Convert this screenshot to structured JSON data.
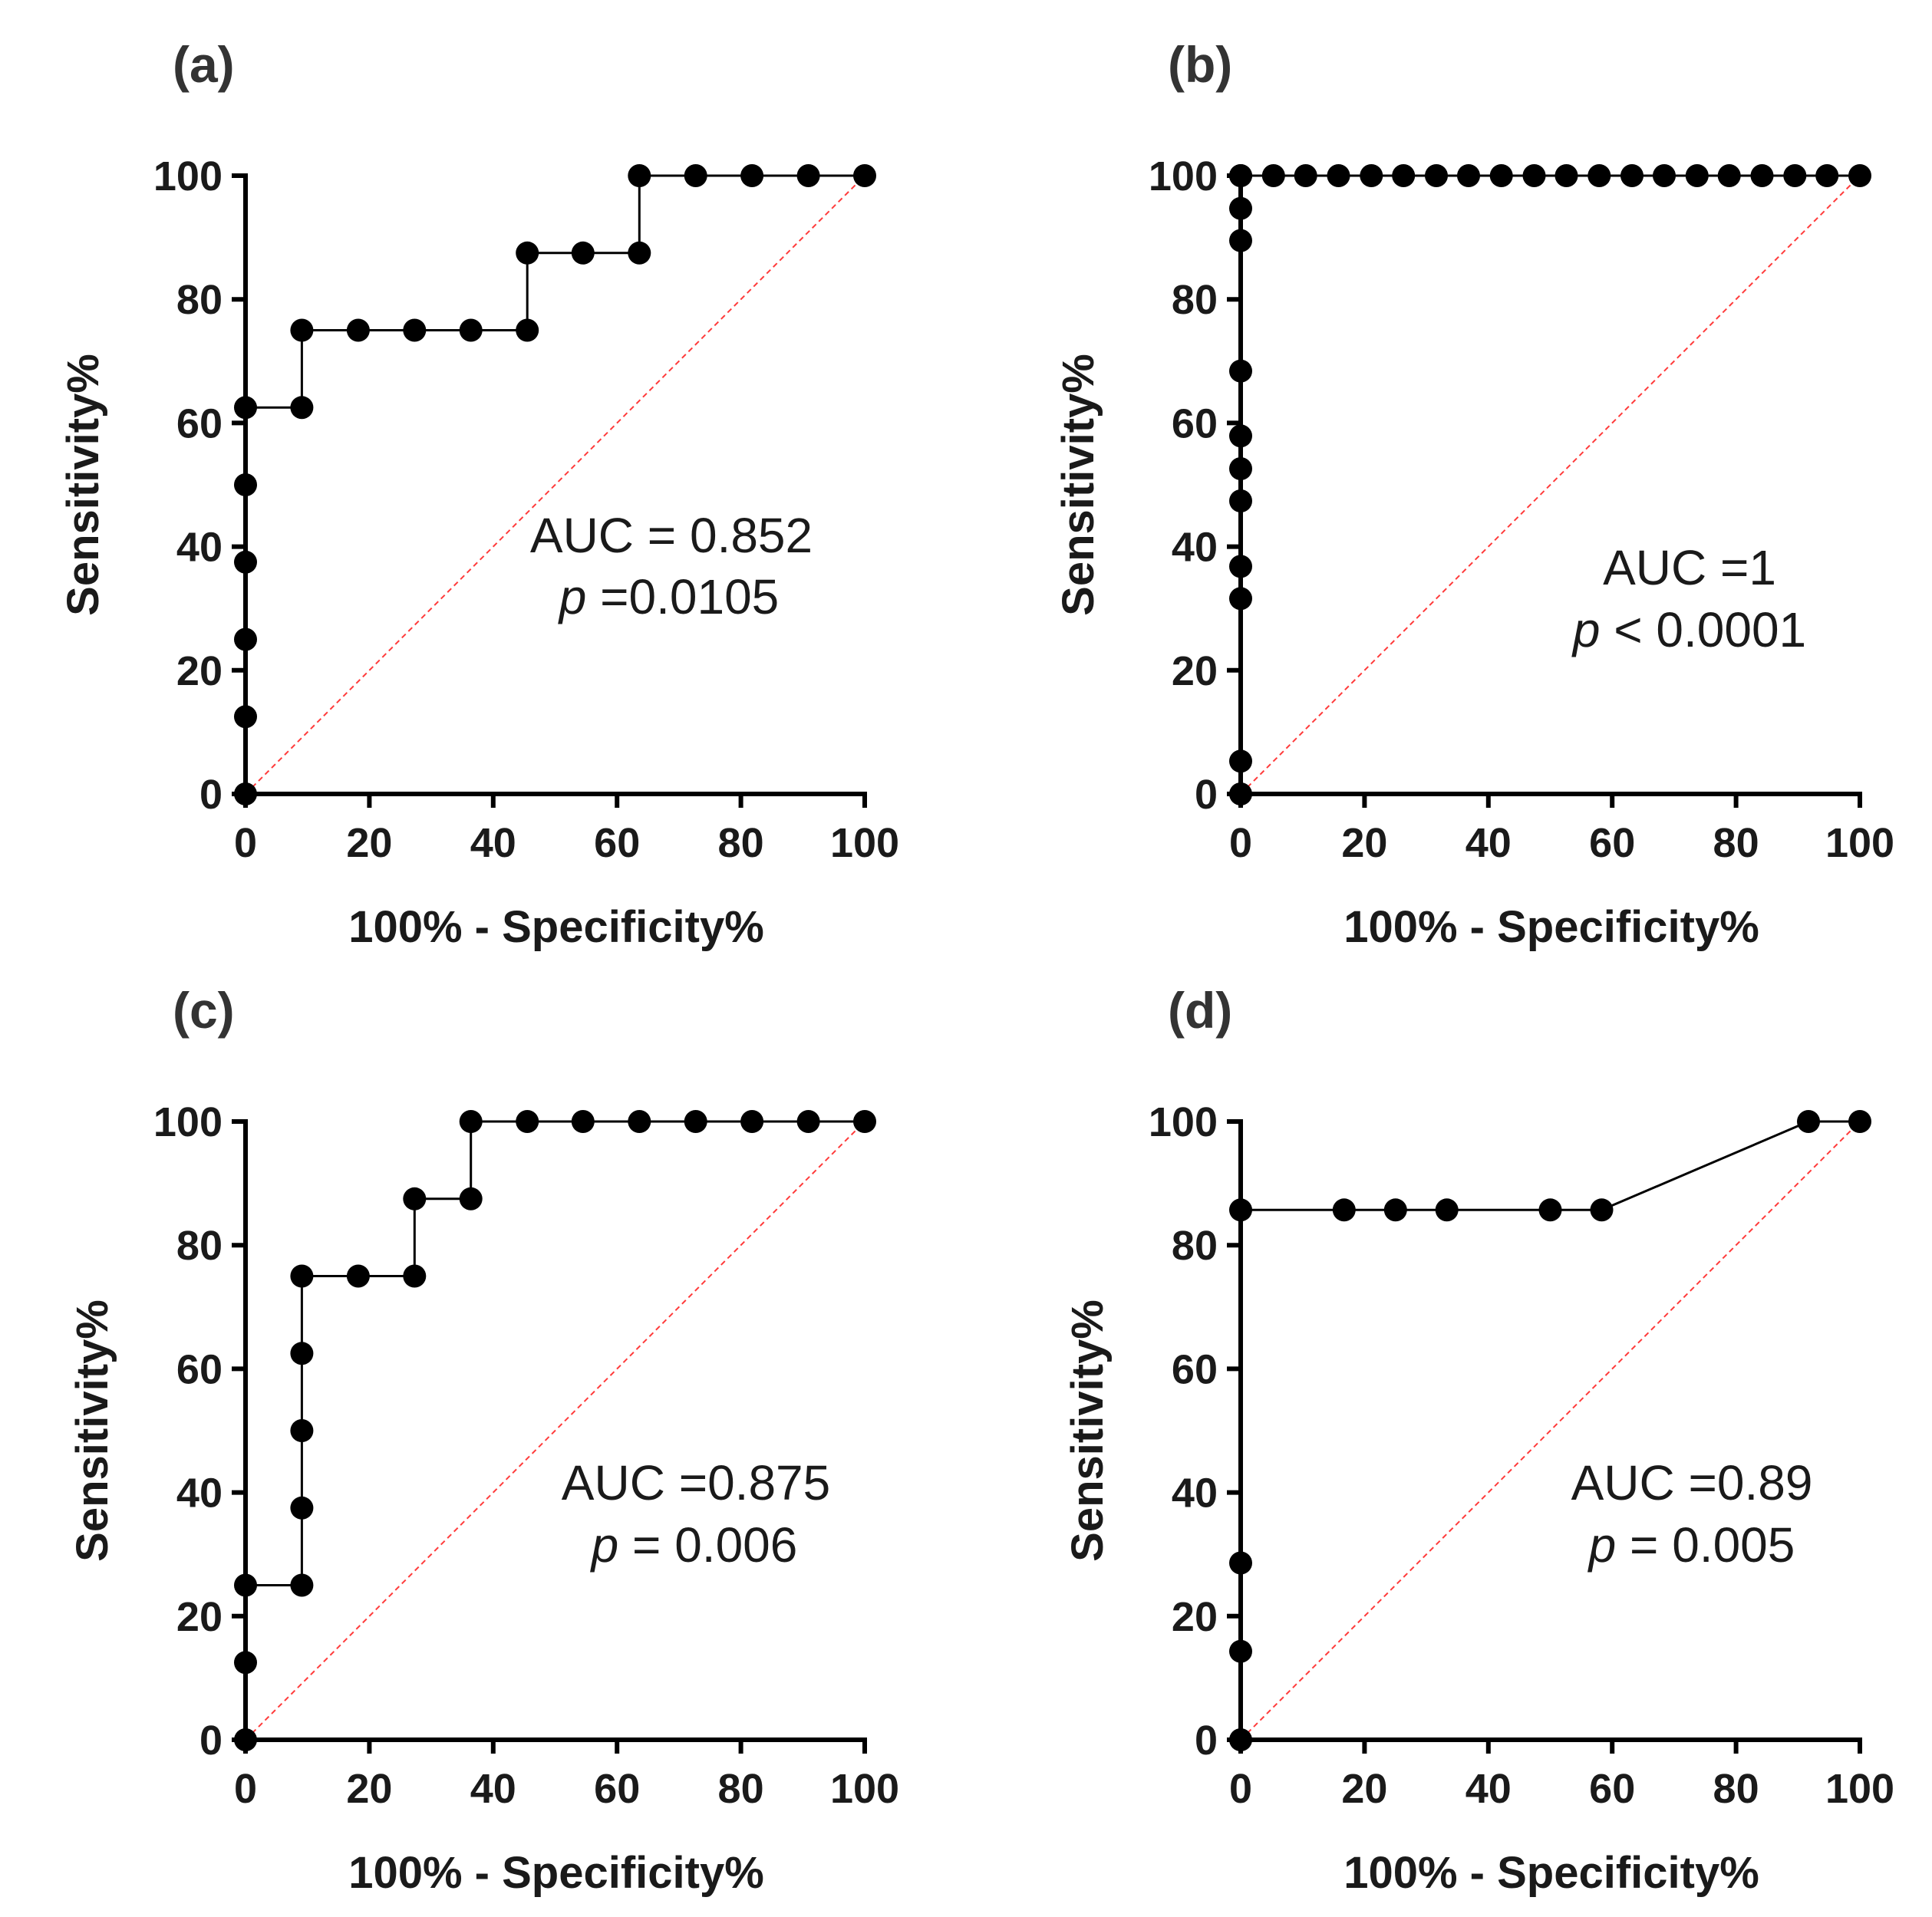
{
  "chart_data": [
    {
      "type": "line",
      "panel": "(a)",
      "xlabel": "100% - Specificity%",
      "ylabel": "Sensitivity%",
      "xlim": [
        0,
        100
      ],
      "ylim": [
        0,
        100
      ],
      "xticks": [
        "0",
        "20",
        "40",
        "60",
        "80",
        "100"
      ],
      "yticks": [
        "0",
        "20",
        "40",
        "60",
        "80",
        "100"
      ],
      "annotation": {
        "auc": "AUC = 0.852",
        "p_symbol": "p",
        "p_value": " =0.0105"
      },
      "reference_line": true,
      "x": [
        0,
        0,
        0,
        0,
        0,
        0,
        9.1,
        9.1,
        18.2,
        27.3,
        36.4,
        45.5,
        45.5,
        54.5,
        63.6,
        63.6,
        72.7,
        81.8,
        90.9,
        100
      ],
      "y": [
        0,
        12.5,
        25,
        37.5,
        50,
        62.5,
        62.5,
        75,
        75,
        75,
        75,
        75,
        87.5,
        87.5,
        87.5,
        100,
        100,
        100,
        100,
        100
      ],
      "step": true
    },
    {
      "type": "line",
      "panel": "(b)",
      "xlabel": "100% - Specificity%",
      "ylabel": "Sensitivity%",
      "xlim": [
        0,
        100
      ],
      "ylim": [
        0,
        100
      ],
      "xticks": [
        "0",
        "20",
        "40",
        "60",
        "80",
        "100"
      ],
      "yticks": [
        "0",
        "20",
        "40",
        "60",
        "80",
        "100"
      ],
      "annotation": {
        "auc": "AUC =1",
        "p_symbol": "p",
        "p_value": " < 0.0001"
      },
      "reference_line": true,
      "x": [
        0,
        0,
        0,
        0,
        0,
        0,
        0,
        0,
        0,
        0,
        0,
        0,
        5.3,
        10.5,
        15.8,
        21.1,
        26.3,
        31.6,
        36.8,
        42.1,
        47.4,
        52.6,
        57.9,
        63.2,
        68.4,
        73.7,
        78.9,
        84.2,
        89.5,
        94.7,
        100
      ],
      "y": [
        0,
        5.3,
        31.6,
        36.8,
        47.4,
        52.6,
        57.9,
        68.4,
        89.5,
        94.7,
        100,
        100,
        100,
        100,
        100,
        100,
        100,
        100,
        100,
        100,
        100,
        100,
        100,
        100,
        100,
        100,
        100,
        100,
        100,
        100,
        100
      ],
      "step": true
    },
    {
      "type": "line",
      "panel": "(c)",
      "xlabel": "100% - Specificity%",
      "ylabel": "Sensitivity%",
      "xlim": [
        0,
        100
      ],
      "ylim": [
        0,
        100
      ],
      "xticks": [
        "0",
        "20",
        "40",
        "60",
        "80",
        "100"
      ],
      "yticks": [
        "0",
        "20",
        "40",
        "60",
        "80",
        "100"
      ],
      "annotation": {
        "auc": "AUC =0.875",
        "p_symbol": "p",
        "p_value": " = 0.006"
      },
      "reference_line": true,
      "x": [
        0,
        0,
        0,
        9.1,
        9.1,
        9.1,
        9.1,
        9.1,
        18.2,
        27.3,
        27.3,
        36.4,
        36.4,
        45.5,
        54.5,
        63.6,
        72.7,
        81.8,
        90.9,
        100
      ],
      "y": [
        0,
        12.5,
        25,
        25,
        37.5,
        50,
        62.5,
        75,
        75,
        75,
        87.5,
        87.5,
        100,
        100,
        100,
        100,
        100,
        100,
        100,
        100
      ],
      "step": true
    },
    {
      "type": "line",
      "panel": "(d)",
      "xlabel": "100% - Specificity%",
      "ylabel": "Sensitivity%",
      "xlim": [
        0,
        100
      ],
      "ylim": [
        0,
        100
      ],
      "xticks": [
        "0",
        "20",
        "40",
        "60",
        "80",
        "100"
      ],
      "yticks": [
        "0",
        "20",
        "40",
        "60",
        "80",
        "100"
      ],
      "annotation": {
        "auc": "AUC =0.89",
        "p_symbol": "p",
        "p_value": " = 0.005"
      },
      "reference_line": true,
      "x": [
        0,
        0,
        0,
        0,
        16.7,
        25,
        33.3,
        50,
        58.3,
        91.7,
        100
      ],
      "y": [
        0,
        14.3,
        28.6,
        85.7,
        85.7,
        85.7,
        85.7,
        85.7,
        85.7,
        100,
        100
      ],
      "step": false
    }
  ]
}
